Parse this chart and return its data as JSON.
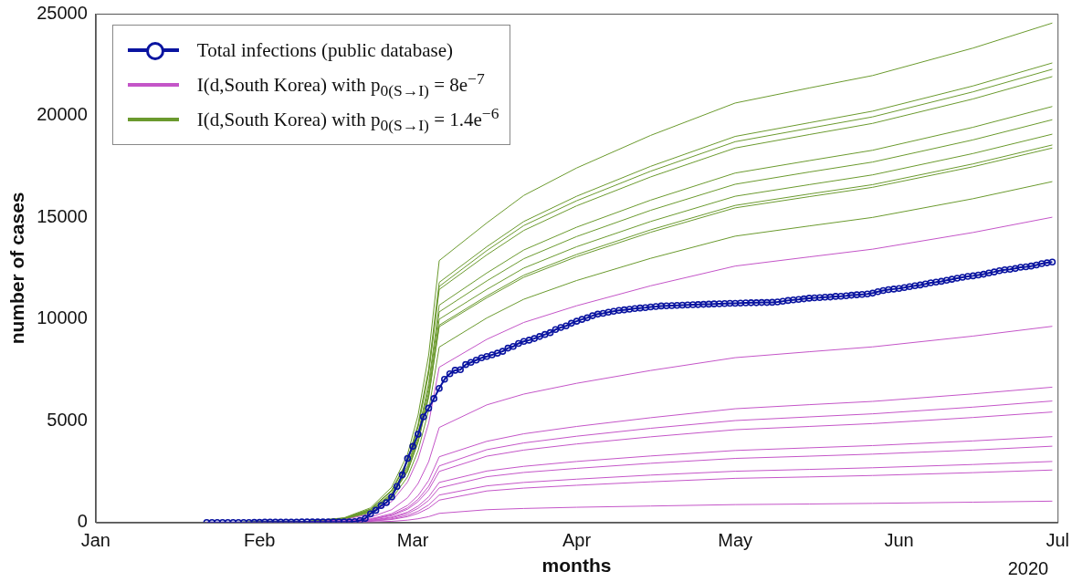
{
  "chart_data": {
    "type": "line",
    "xlabel": "months",
    "ylabel": "number of cases",
    "legend": "top left",
    "marker": "none",
    "xlim": [
      "2020-01-01",
      "2020-07-01"
    ],
    "xticks": [
      {
        "value": "2020-01-01",
        "label": "Jan"
      },
      {
        "value": "2020-02-01",
        "label": "Feb"
      },
      {
        "value": "2020-03-01",
        "label": "Mar"
      },
      {
        "value": "2020-04-01",
        "label": "Apr"
      },
      {
        "value": "2020-05-01",
        "label": "May"
      },
      {
        "value": "2020-06-01",
        "label": "Jun"
      },
      {
        "value": "2020-07-01",
        "label": "Jul"
      }
    ],
    "ylim": [
      0,
      25000
    ],
    "yticks": [
      0,
      5000,
      10000,
      15000,
      20000,
      25000
    ],
    "annotations": [
      "2020"
    ],
    "x": [
      "2020-01-22",
      "2020-02-10",
      "2020-02-17",
      "2020-02-22",
      "2020-02-26",
      "2020-02-29",
      "2020-03-02",
      "2020-03-04",
      "2020-03-06",
      "2020-03-15",
      "2020-03-22",
      "2020-04-01",
      "2020-04-15",
      "2020-05-01",
      "2020-05-15",
      "2020-05-27",
      "2020-06-15",
      "2020-06-30"
    ],
    "series": [
      {
        "name": "Total infections (public database)",
        "color": "#0a14a0",
        "marker": "circle",
        "x": [
          "2020-01-22",
          "2020-01-23",
          "2020-01-24",
          "2020-01-25",
          "2020-01-26",
          "2020-01-27",
          "2020-01-28",
          "2020-01-29",
          "2020-01-30",
          "2020-01-31",
          "2020-02-01",
          "2020-02-02",
          "2020-02-03",
          "2020-02-04",
          "2020-02-05",
          "2020-02-06",
          "2020-02-07",
          "2020-02-08",
          "2020-02-09",
          "2020-02-10",
          "2020-02-11",
          "2020-02-12",
          "2020-02-13",
          "2020-02-14",
          "2020-02-15",
          "2020-02-16",
          "2020-02-17",
          "2020-02-18",
          "2020-02-19",
          "2020-02-20",
          "2020-02-21",
          "2020-02-22",
          "2020-02-23",
          "2020-02-24",
          "2020-02-25",
          "2020-02-26",
          "2020-02-27",
          "2020-02-28",
          "2020-02-29",
          "2020-03-01",
          "2020-03-02",
          "2020-03-03",
          "2020-03-04",
          "2020-03-05",
          "2020-03-06",
          "2020-03-07",
          "2020-03-08",
          "2020-03-09",
          "2020-03-10",
          "2020-03-11",
          "2020-03-12",
          "2020-03-13",
          "2020-03-14",
          "2020-03-15",
          "2020-03-16",
          "2020-03-17",
          "2020-03-18",
          "2020-03-19",
          "2020-03-20",
          "2020-03-21",
          "2020-03-22",
          "2020-03-23",
          "2020-03-24",
          "2020-03-25",
          "2020-03-26",
          "2020-03-27",
          "2020-03-28",
          "2020-03-29",
          "2020-03-30",
          "2020-03-31",
          "2020-04-01",
          "2020-04-02",
          "2020-04-03",
          "2020-04-04",
          "2020-04-05",
          "2020-04-06",
          "2020-04-07",
          "2020-04-08",
          "2020-04-09",
          "2020-04-10",
          "2020-04-11",
          "2020-04-12",
          "2020-04-13",
          "2020-04-14",
          "2020-04-15",
          "2020-04-16",
          "2020-04-17",
          "2020-04-18",
          "2020-04-19",
          "2020-04-20",
          "2020-04-21",
          "2020-04-22",
          "2020-04-23",
          "2020-04-24",
          "2020-04-25",
          "2020-04-26",
          "2020-04-27",
          "2020-04-28",
          "2020-04-29",
          "2020-04-30",
          "2020-05-01",
          "2020-05-02",
          "2020-05-03",
          "2020-05-04",
          "2020-05-05",
          "2020-05-06",
          "2020-05-07",
          "2020-05-08",
          "2020-05-09",
          "2020-05-10",
          "2020-05-11",
          "2020-05-12",
          "2020-05-13",
          "2020-05-14",
          "2020-05-15",
          "2020-05-16",
          "2020-05-17",
          "2020-05-18",
          "2020-05-19",
          "2020-05-20",
          "2020-05-21",
          "2020-05-22",
          "2020-05-23",
          "2020-05-24",
          "2020-05-25",
          "2020-05-26",
          "2020-05-27",
          "2020-05-28",
          "2020-05-29",
          "2020-05-30",
          "2020-05-31",
          "2020-06-01",
          "2020-06-02",
          "2020-06-03",
          "2020-06-04",
          "2020-06-05",
          "2020-06-06",
          "2020-06-07",
          "2020-06-08",
          "2020-06-09",
          "2020-06-10",
          "2020-06-11",
          "2020-06-12",
          "2020-06-13",
          "2020-06-14",
          "2020-06-15",
          "2020-06-16",
          "2020-06-17",
          "2020-06-18",
          "2020-06-19",
          "2020-06-20",
          "2020-06-21",
          "2020-06-22",
          "2020-06-23",
          "2020-06-24",
          "2020-06-25",
          "2020-06-26",
          "2020-06-27",
          "2020-06-28",
          "2020-06-29",
          "2020-06-30"
        ],
        "values": [
          0,
          0,
          0,
          0,
          0,
          0,
          0,
          0,
          0,
          10,
          10,
          20,
          20,
          20,
          20,
          20,
          20,
          20,
          30,
          30,
          30,
          30,
          30,
          30,
          30,
          30,
          30,
          30,
          50,
          100,
          200,
          430,
          600,
          830,
          980,
          1260,
          1770,
          2340,
          3150,
          3740,
          4340,
          5190,
          5620,
          6090,
          6590,
          7040,
          7310,
          7480,
          7510,
          7760,
          7870,
          7980,
          8090,
          8160,
          8240,
          8320,
          8410,
          8570,
          8650,
          8800,
          8900,
          8960,
          9040,
          9140,
          9240,
          9330,
          9480,
          9580,
          9660,
          9790,
          9890,
          9980,
          10060,
          10160,
          10240,
          10280,
          10330,
          10380,
          10420,
          10450,
          10480,
          10510,
          10540,
          10560,
          10590,
          10610,
          10640,
          10650,
          10660,
          10670,
          10680,
          10690,
          10700,
          10710,
          10720,
          10730,
          10740,
          10750,
          10760,
          10770,
          10770,
          10780,
          10790,
          10800,
          10800,
          10810,
          10810,
          10820,
          10840,
          10870,
          10910,
          10940,
          10960,
          10990,
          11020,
          11040,
          11050,
          11070,
          11080,
          11110,
          11120,
          11140,
          11170,
          11190,
          11210,
          11230,
          11270,
          11340,
          11400,
          11440,
          11470,
          11500,
          11540,
          11590,
          11630,
          11670,
          11720,
          11780,
          11810,
          11850,
          11900,
          11950,
          12000,
          12050,
          12090,
          12120,
          12160,
          12200,
          12260,
          12310,
          12370,
          12420,
          12440,
          12480,
          12540,
          12560,
          12600,
          12650,
          12720,
          12760,
          12800
        ]
      },
      {
        "name": "I(d,South Korea) with p$_{0(S→I)}$ = 8e$^{−7}$",
        "color": "#c455c8",
        "values": [
          0,
          31,
          137,
          427,
          1030,
          1984,
          3128,
          4883,
          7630,
          9000,
          9830,
          10650,
          11630,
          12600,
          13050,
          13430,
          14250,
          15000
        ]
      },
      {
        "color": "#c455c8",
        "values": [
          0,
          19,
          84,
          262,
          630,
          1214,
          1915,
          2989,
          4670,
          5780,
          6310,
          6840,
          7470,
          8100,
          8390,
          8630,
          9160,
          9640
        ]
      },
      {
        "color": "#c455c8",
        "values": [
          0,
          13,
          58,
          181,
          436,
          840,
          1324,
          2067,
          3230,
          3990,
          4360,
          4720,
          5150,
          5590,
          5790,
          5950,
          6320,
          6650
        ]
      },
      {
        "color": "#c455c8",
        "values": [
          0,
          11,
          50,
          156,
          375,
          723,
          1140,
          1779,
          2780,
          3580,
          3910,
          4240,
          4630,
          5010,
          5190,
          5340,
          5670,
          5970
        ]
      },
      {
        "color": "#c455c8",
        "values": [
          0,
          10,
          45,
          141,
          339,
          653,
          1029,
          1606,
          2510,
          3260,
          3560,
          3860,
          4210,
          4560,
          4720,
          4860,
          5160,
          5430
        ]
      },
      {
        "color": "#c455c8",
        "values": [
          0,
          8,
          35,
          110,
          266,
          512,
          808,
          1261,
          1970,
          2530,
          2760,
          3000,
          3270,
          3540,
          3670,
          3780,
          4010,
          4220
        ]
      },
      {
        "color": "#c455c8",
        "values": [
          0,
          7,
          31,
          95,
          230,
          442,
          697,
          1088,
          1700,
          2250,
          2460,
          2660,
          2910,
          3150,
          3260,
          3360,
          3560,
          3750
        ]
      },
      {
        "color": "#c455c8",
        "values": [
          0,
          5,
          24,
          76,
          182,
          351,
          554,
          864,
          1350,
          1800,
          1970,
          2130,
          2330,
          2520,
          2610,
          2690,
          2850,
          3000
        ]
      },
      {
        "color": "#c455c8",
        "values": [
          0,
          4,
          20,
          62,
          149,
          286,
          451,
          704,
          1100,
          1550,
          1690,
          1830,
          2000,
          2170,
          2240,
          2310,
          2450,
          2580
        ]
      },
      {
        "color": "#c455c8",
        "values": [
          0,
          2,
          8,
          25,
          61,
          117,
          185,
          288,
          450,
          630,
          690,
          750,
          810,
          880,
          910,
          940,
          1000,
          1050
        ]
      },
      {
        "name": "I(d,South Korea) with p$_{0(S→I)}$ = 1.4e$^{−6}$",
        "color": "#6b9a2e",
        "values": [
          0,
          51,
          232,
          721,
          1737,
          3346,
          5277,
          8237,
          12870,
          14720,
          16070,
          17420,
          19020,
          20610,
          21350,
          21960,
          23310,
          24540
        ]
      },
      {
        "color": "#6b9a2e",
        "values": [
          0,
          47,
          212,
          661,
          1593,
          3068,
          4838,
          7552,
          11800,
          13550,
          14790,
          16030,
          17500,
          18970,
          19640,
          20210,
          21450,
          22580
        ]
      },
      {
        "color": "#6b9a2e",
        "values": [
          0,
          46,
          209,
          650,
          1566,
          3016,
          4756,
          7424,
          11600,
          13360,
          14590,
          15810,
          17260,
          18710,
          19370,
          19930,
          21160,
          22270
        ]
      },
      {
        "color": "#6b9a2e",
        "values": [
          0,
          46,
          206,
          641,
          1546,
          2977,
          4695,
          7328,
          11450,
          13150,
          14350,
          15560,
          16980,
          18400,
          19060,
          19610,
          20810,
          21910
        ]
      },
      {
        "color": "#6b9a2e",
        "values": [
          0,
          43,
          192,
          598,
          1442,
          2777,
          4379,
          6835,
          10680,
          12260,
          13390,
          14510,
          15840,
          17170,
          17780,
          18290,
          19420,
          20440
        ]
      },
      {
        "color": "#6b9a2e",
        "values": [
          0,
          41,
          186,
          580,
          1397,
          2691,
          4244,
          6624,
          10350,
          11870,
          12960,
          14050,
          15340,
          16620,
          17220,
          17710,
          18800,
          19790
        ]
      },
      {
        "color": "#6b9a2e",
        "values": [
          0,
          40,
          180,
          559,
          1349,
          2597,
          4096,
          6394,
          9990,
          11450,
          12500,
          13550,
          14790,
          16030,
          16600,
          17080,
          18130,
          19080
        ]
      },
      {
        "color": "#6b9a2e",
        "values": [
          0,
          39,
          175,
          543,
          1310,
          2522,
          3977,
          6208,
          9700,
          11130,
          12150,
          13170,
          14380,
          15580,
          16140,
          16600,
          17620,
          18550
        ]
      },
      {
        "color": "#6b9a2e",
        "values": [
          0,
          38,
          173,
          539,
          1299,
          2501,
          3944,
          6157,
          9620,
          11040,
          12050,
          13060,
          14260,
          15460,
          16010,
          16470,
          17480,
          18400
        ]
      },
      {
        "color": "#6b9a2e",
        "values": [
          0,
          34,
          155,
          483,
          1164,
          2241,
          3534,
          5517,
          8620,
          10050,
          10970,
          11890,
          12980,
          14070,
          14570,
          14990,
          15910,
          16750
        ]
      }
    ]
  }
}
